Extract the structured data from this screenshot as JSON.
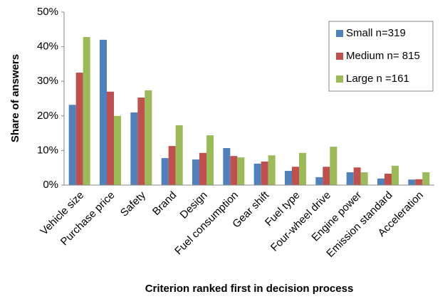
{
  "chart_data": {
    "type": "bar",
    "x_label": "Criterion ranked first in decision process",
    "y_label": "Share of answers",
    "categories": [
      "Vehicle size",
      "Purchase price",
      "Safety",
      "Brand",
      "Design",
      "Fuel consumption",
      "Gear shift",
      "Fuel type",
      "Four-wheel drive",
      "Engine power",
      "Emission standard",
      "Acceleration"
    ],
    "series": [
      {
        "name": "Small n=319",
        "color": "#4f81bd",
        "values": [
          23.2,
          42,
          21,
          7.8,
          7.4,
          10.7,
          6.2,
          4.1,
          2.3,
          3.7,
          1.9,
          1.6
        ]
      },
      {
        "name": "Medium n= 815",
        "color": "#c0504d",
        "values": [
          32.5,
          27,
          25.3,
          11.3,
          9.3,
          8.4,
          6.8,
          5.3,
          5.3,
          5.1,
          3.3,
          1.7
        ]
      },
      {
        "name": "Large n =161",
        "color": "#9bbb59",
        "values": [
          42.8,
          20,
          27.4,
          17.3,
          14.4,
          8.0,
          8.6,
          9.3,
          11.1,
          3.7,
          5.6,
          3.7
        ]
      }
    ],
    "ylim": [
      0,
      50
    ],
    "yticks": [
      {
        "value": 0,
        "label": "0%"
      },
      {
        "value": 10,
        "label": "10%"
      },
      {
        "value": 20,
        "label": "20%"
      },
      {
        "value": 30,
        "label": "30%"
      },
      {
        "value": 40,
        "label": "40%"
      },
      {
        "value": 50,
        "label": "50%"
      }
    ],
    "grid": false,
    "legend": "top-right"
  }
}
